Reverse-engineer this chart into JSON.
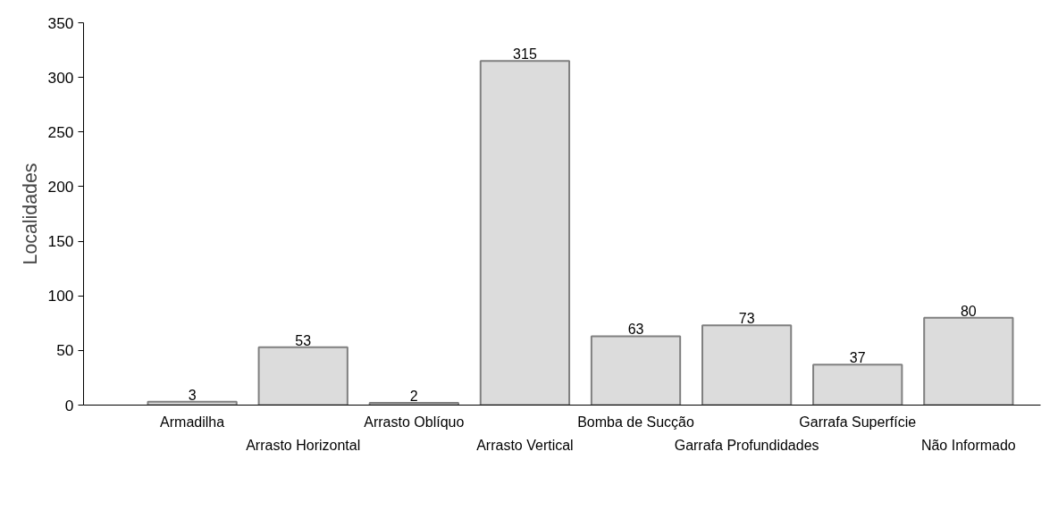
{
  "chart_data": {
    "type": "bar",
    "ylabel": "Localidades",
    "categories": [
      "Armadilha",
      "Arrasto Horizontal",
      "Arrasto Oblíquo",
      "Arrasto Vertical",
      "Bomba de Sucção",
      "Garrafa Profundidades",
      "Garrafa Superfície",
      "Não Informado"
    ],
    "values": [
      3,
      53,
      2,
      315,
      63,
      73,
      37,
      80
    ],
    "color": "#dcdcdc",
    "ylim": [
      0,
      350
    ],
    "yticks": [
      0,
      50,
      100,
      150,
      200,
      250,
      300,
      350
    ],
    "grid": false,
    "data_labels": true
  }
}
